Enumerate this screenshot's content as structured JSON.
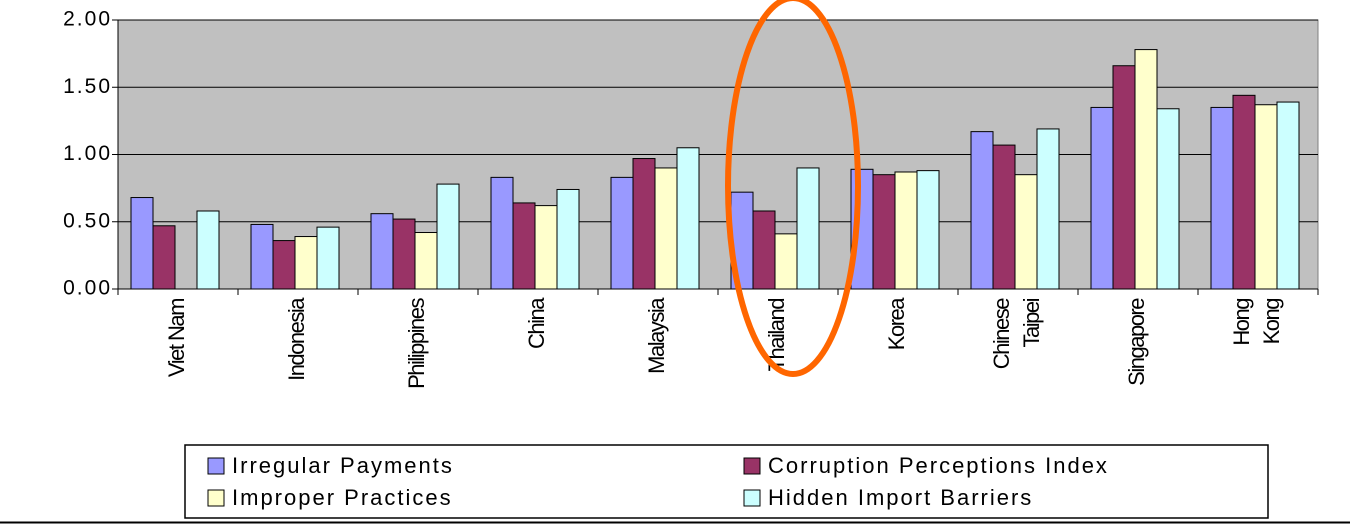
{
  "chart_data": {
    "type": "bar",
    "categories": [
      "Viet Nam",
      "Indonesia",
      "Philippines",
      "China",
      "Malaysia",
      "Thailand",
      "Korea",
      [
        "Chinese",
        "Taipei"
      ],
      "Singapore",
      [
        "Hong",
        "Kong"
      ]
    ],
    "series": [
      {
        "name": "Irregular Payments",
        "color": "#9999ff",
        "values": [
          0.68,
          0.48,
          0.56,
          0.83,
          0.83,
          0.72,
          0.89,
          1.17,
          1.35,
          1.35
        ]
      },
      {
        "name": "Corruption Perceptions Index",
        "color": "#993366",
        "values": [
          0.47,
          0.36,
          0.52,
          0.64,
          0.97,
          0.58,
          0.85,
          1.07,
          1.66,
          1.44
        ]
      },
      {
        "name": "Improper Practices",
        "color": "#ffffcc",
        "values": [
          null,
          0.39,
          0.42,
          0.62,
          0.9,
          0.41,
          0.87,
          0.85,
          1.78,
          1.37
        ]
      },
      {
        "name": "Hidden Import Barriers",
        "color": "#ccffff",
        "values": [
          0.58,
          0.46,
          0.78,
          0.74,
          1.05,
          0.9,
          0.88,
          1.19,
          1.34,
          1.39
        ]
      }
    ],
    "ylim": [
      0,
      2
    ],
    "yticks": [
      {
        "value": 0,
        "label": "0.00"
      },
      {
        "value": 0.5,
        "label": "0.50"
      },
      {
        "value": 1,
        "label": "1.00"
      },
      {
        "value": 1.5,
        "label": "1.50"
      },
      {
        "value": 2,
        "label": "2.00"
      }
    ],
    "grid": true,
    "plot_background": "#c0c0c0",
    "legend": "bottom"
  }
}
